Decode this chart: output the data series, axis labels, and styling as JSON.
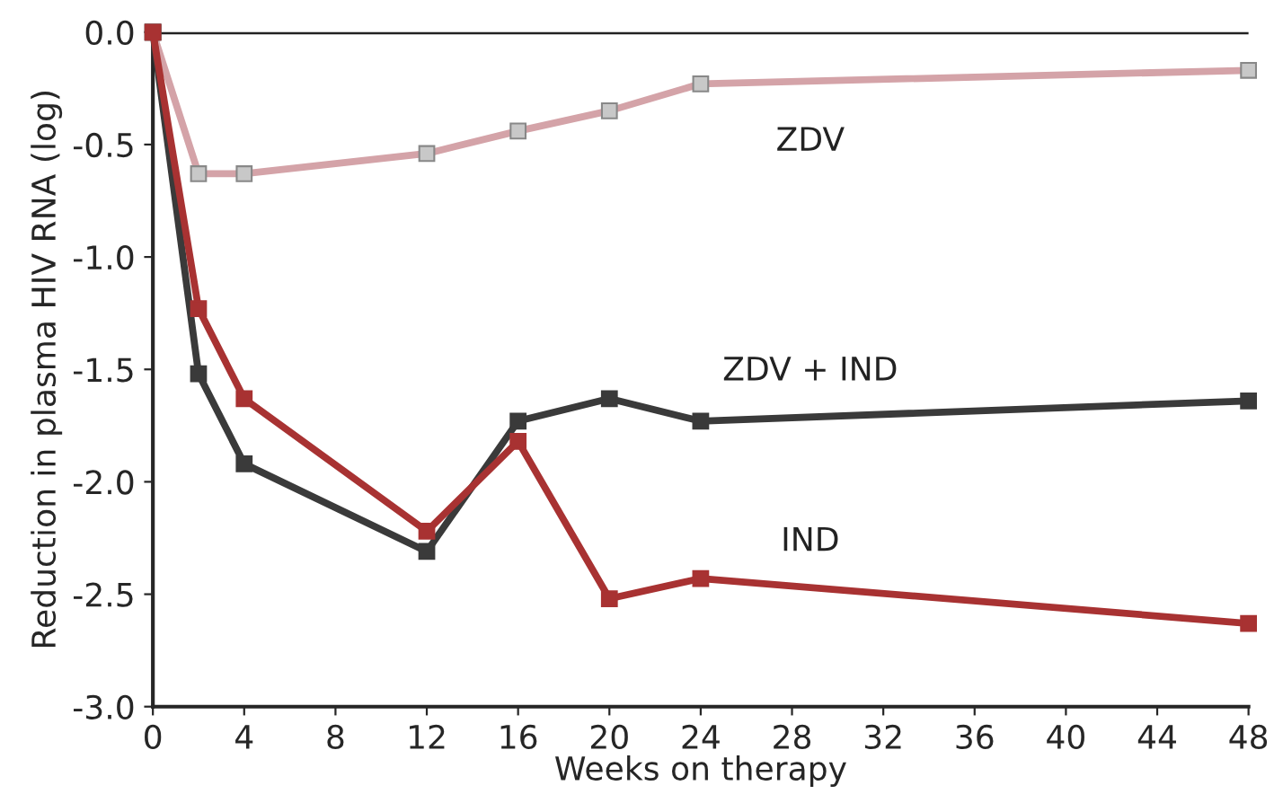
{
  "chart_data": {
    "type": "line",
    "xlabel": "Weeks on therapy",
    "ylabel": "Reduction in plasma HIV RNA (log)",
    "x": [
      0,
      2,
      4,
      12,
      16,
      20,
      24,
      48
    ],
    "series": [
      {
        "name": "ZDV",
        "color": "#d4a3a8",
        "values": [
          0,
          -0.63,
          -0.63,
          -0.54,
          -0.44,
          -0.35,
          -0.23,
          -0.17
        ]
      },
      {
        "name": "ZDV + IND",
        "color": "#3a3a3a",
        "values": [
          0,
          -1.52,
          -1.92,
          -2.31,
          -1.73,
          -1.63,
          -1.73,
          -1.64
        ]
      },
      {
        "name": "IND",
        "color": "#a83232",
        "values": [
          0,
          -1.23,
          -1.63,
          -2.22,
          -1.82,
          -2.52,
          -2.43,
          -2.63
        ]
      }
    ],
    "xlim": [
      0,
      48
    ],
    "ylim": [
      -3,
      0
    ],
    "xticks": [
      0,
      4,
      8,
      12,
      16,
      20,
      24,
      28,
      32,
      36,
      40,
      44,
      48
    ],
    "yticks": [
      {
        "value": 0,
        "label": "0.0"
      },
      {
        "value": -0.5,
        "label": "-0.5"
      },
      {
        "value": -1,
        "label": "-1.0"
      },
      {
        "value": -1.5,
        "label": "-1.5"
      },
      {
        "value": -2,
        "label": "-2.0"
      },
      {
        "value": -2.5,
        "label": "-2.5"
      },
      {
        "value": -3,
        "label": "-3.0"
      }
    ],
    "ref_lines": [
      {
        "axis": "y",
        "value": 0,
        "color": "#222222"
      }
    ],
    "marker": "square",
    "line_style": "solid",
    "grid": false,
    "legend": false
  }
}
